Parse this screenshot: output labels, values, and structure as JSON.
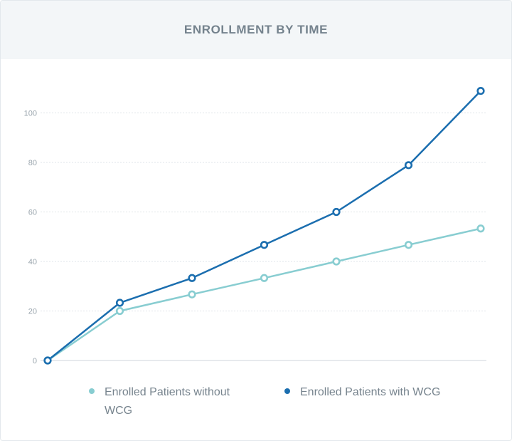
{
  "header": {
    "title": "ENROLLMENT BY TIME"
  },
  "colors": {
    "header_bg": "#f3f6f8",
    "series_without": "#88cdd1",
    "series_with": "#1b6eaf",
    "grid": "#dfe4e8",
    "tick_text": "#9aa5ad"
  },
  "chart_data": {
    "type": "line",
    "title": "ENROLLMENT BY TIME",
    "xlabel": "",
    "ylabel": "",
    "x": [
      0,
      1,
      2,
      3,
      4,
      5,
      6
    ],
    "ylim": [
      0,
      110
    ],
    "yticks": [
      0,
      20,
      40,
      60,
      80,
      100
    ],
    "ytick_labels": [
      "0",
      "20",
      "40",
      "60",
      "80",
      "100"
    ],
    "grid": true,
    "legend_position": "bottom",
    "series": [
      {
        "name": "Enrolled Patients without WCG",
        "values": [
          0,
          20,
          26.7,
          33.3,
          40,
          46.7,
          53.3
        ]
      },
      {
        "name": "Enrolled Patients with WCG",
        "values": [
          0,
          23.3,
          33.3,
          46.7,
          60,
          78.9,
          108.9
        ]
      }
    ]
  }
}
